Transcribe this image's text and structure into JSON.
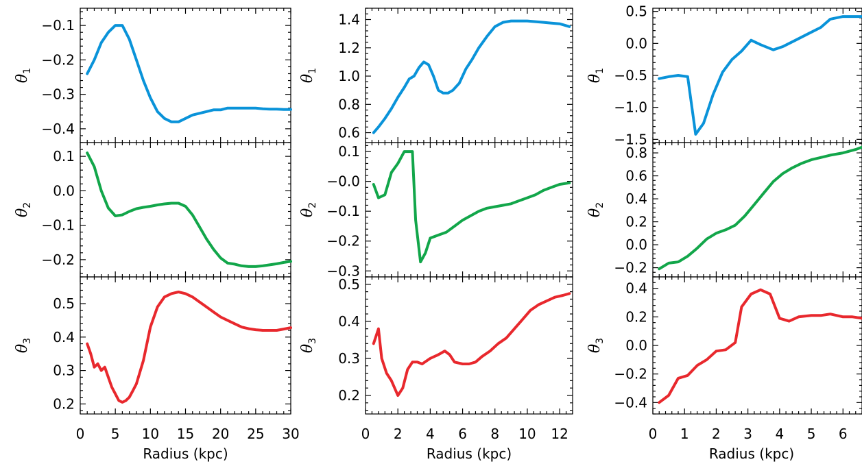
{
  "colors": {
    "theta1": "#0a93d9",
    "theta2": "#12a64a",
    "theta3": "#e8282d",
    "axis": "#000000"
  },
  "chart_data": [
    {
      "type": "line",
      "columns": 3,
      "rows": 3,
      "xlabel": "Radius (kpc)",
      "xlim": [
        0,
        30
      ],
      "xticks": [
        0,
        5,
        10,
        15,
        20,
        25,
        30
      ],
      "panels": [
        {
          "ylabel": "θ",
          "ylabel_sub": "1",
          "series": "theta1",
          "ylim": [
            -0.44,
            -0.05
          ],
          "yticks": [
            -0.1,
            -0.2,
            -0.3,
            -0.4
          ],
          "ytick_labels": [
            "−0.1",
            "−0.2",
            "−0.3",
            "−0.4"
          ],
          "x": [
            1,
            2,
            3,
            4,
            5,
            6,
            7,
            8,
            9,
            10,
            11,
            12,
            13,
            14,
            15,
            16,
            17,
            18,
            19,
            20,
            21,
            22,
            23,
            24,
            25,
            26,
            27,
            28,
            29,
            30
          ],
          "y": [
            -0.24,
            -0.2,
            -0.15,
            -0.12,
            -0.1,
            -0.1,
            -0.14,
            -0.2,
            -0.26,
            -0.31,
            -0.35,
            -0.37,
            -0.38,
            -0.38,
            -0.37,
            -0.36,
            -0.355,
            -0.35,
            -0.345,
            -0.345,
            -0.34,
            -0.34,
            -0.34,
            -0.34,
            -0.34,
            -0.342,
            -0.343,
            -0.343,
            -0.344,
            -0.344
          ]
        },
        {
          "ylabel": "θ",
          "ylabel_sub": "2",
          "series": "theta2",
          "ylim": [
            -0.25,
            0.14
          ],
          "yticks": [
            0.1,
            0.0,
            -0.1,
            -0.2
          ],
          "ytick_labels": [
            "0.1",
            "0.0",
            "−0.1",
            "−0.2"
          ],
          "x": [
            1,
            2,
            3,
            4,
            5,
            6,
            7,
            8,
            9,
            10,
            11,
            12,
            13,
            14,
            15,
            16,
            17,
            18,
            19,
            20,
            21,
            22,
            23,
            24,
            25,
            26,
            27,
            28,
            29,
            30
          ],
          "y": [
            0.11,
            0.07,
            0.0,
            -0.05,
            -0.073,
            -0.07,
            -0.06,
            -0.052,
            -0.048,
            -0.045,
            -0.041,
            -0.038,
            -0.036,
            -0.036,
            -0.045,
            -0.07,
            -0.105,
            -0.14,
            -0.17,
            -0.195,
            -0.21,
            -0.213,
            -0.218,
            -0.22,
            -0.22,
            -0.218,
            -0.215,
            -0.212,
            -0.208,
            -0.205
          ]
        },
        {
          "ylabel": "θ",
          "ylabel_sub": "3",
          "series": "theta3",
          "ylim": [
            0.17,
            0.58
          ],
          "yticks": [
            0.5,
            0.4,
            0.3,
            0.2
          ],
          "ytick_labels": [
            "0.5",
            "0.4",
            "0.3",
            "0.2"
          ],
          "x": [
            1,
            1.5,
            2,
            2.5,
            3,
            3.5,
            4,
            4.5,
            5,
            5.5,
            6,
            6.5,
            7,
            7.5,
            8,
            9,
            10,
            11,
            12,
            13,
            14,
            15,
            16,
            17,
            18,
            19,
            20,
            21,
            22,
            23,
            24,
            25,
            26,
            27,
            28,
            29,
            30
          ],
          "y": [
            0.38,
            0.35,
            0.31,
            0.32,
            0.3,
            0.31,
            0.28,
            0.25,
            0.23,
            0.21,
            0.205,
            0.21,
            0.22,
            0.24,
            0.26,
            0.33,
            0.43,
            0.49,
            0.52,
            0.53,
            0.535,
            0.53,
            0.52,
            0.505,
            0.49,
            0.475,
            0.46,
            0.45,
            0.44,
            0.43,
            0.425,
            0.422,
            0.42,
            0.42,
            0.42,
            0.424,
            0.428
          ]
        }
      ]
    },
    {
      "type": "line",
      "columns": 3,
      "rows": 3,
      "xlabel": "Radius (kpc)",
      "xlim": [
        0,
        12.8
      ],
      "xticks": [
        0,
        2,
        4,
        6,
        8,
        10,
        12
      ],
      "panels": [
        {
          "ylabel": "θ",
          "ylabel_sub": "1",
          "series": "theta1",
          "ylim": [
            0.53,
            1.48
          ],
          "yticks": [
            1.4,
            1.2,
            1.0,
            0.8,
            0.6
          ],
          "ytick_labels": [
            "1.4",
            "1.2",
            "1.0",
            "0.8",
            "0.6"
          ],
          "x": [
            0.5,
            0.8,
            1.2,
            1.6,
            2,
            2.4,
            2.7,
            3.0,
            3.3,
            3.6,
            3.9,
            4.2,
            4.5,
            4.8,
            5.1,
            5.4,
            5.8,
            6.2,
            6.6,
            7.0,
            7.5,
            8.0,
            8.5,
            9.0,
            9.5,
            10.0,
            10.5,
            11.0,
            11.5,
            12.0,
            12.6
          ],
          "y": [
            0.6,
            0.64,
            0.7,
            0.77,
            0.85,
            0.92,
            0.98,
            1.0,
            1.06,
            1.1,
            1.08,
            1.0,
            0.9,
            0.88,
            0.88,
            0.9,
            0.95,
            1.05,
            1.12,
            1.2,
            1.28,
            1.35,
            1.38,
            1.39,
            1.39,
            1.39,
            1.385,
            1.38,
            1.375,
            1.37,
            1.35
          ]
        },
        {
          "ylabel": "θ",
          "ylabel_sub": "2",
          "series": "theta2",
          "ylim": [
            -0.32,
            0.13
          ],
          "yticks": [
            0.1,
            0.0,
            -0.1,
            -0.2,
            -0.3
          ],
          "ytick_labels": [
            "0.1",
            "−0.0",
            "−0.1",
            "−0.2",
            "−0.3"
          ],
          "x": [
            0.5,
            0.8,
            1.2,
            1.6,
            2.0,
            2.4,
            2.9,
            3.1,
            3.4,
            3.7,
            4.0,
            4.5,
            5.0,
            5.5,
            6.0,
            6.5,
            7.0,
            7.5,
            8.0,
            8.5,
            9.0,
            9.5,
            10.0,
            10.5,
            11.0,
            11.5,
            12.0,
            12.6
          ],
          "y": [
            -0.01,
            -0.055,
            -0.045,
            0.03,
            0.06,
            0.1,
            0.1,
            -0.13,
            -0.27,
            -0.24,
            -0.19,
            -0.18,
            -0.17,
            -0.15,
            -0.13,
            -0.115,
            -0.1,
            -0.09,
            -0.085,
            -0.08,
            -0.075,
            -0.065,
            -0.055,
            -0.045,
            -0.03,
            -0.02,
            -0.01,
            -0.005
          ]
        },
        {
          "ylabel": "θ",
          "ylabel_sub": "3",
          "series": "theta3",
          "ylim": [
            0.15,
            0.52
          ],
          "yticks": [
            0.5,
            0.4,
            0.3,
            0.2
          ],
          "ytick_labels": [
            "0.5",
            "0.4",
            "0.3",
            "0.2"
          ],
          "x": [
            0.5,
            0.8,
            1.0,
            1.3,
            1.6,
            2.0,
            2.3,
            2.6,
            2.9,
            3.2,
            3.5,
            4.0,
            4.5,
            4.9,
            5.2,
            5.5,
            6.0,
            6.4,
            6.8,
            7.2,
            7.7,
            8.2,
            8.7,
            9.2,
            9.7,
            10.2,
            10.7,
            11.2,
            11.7,
            12.2,
            12.6
          ],
          "y": [
            0.34,
            0.38,
            0.3,
            0.26,
            0.24,
            0.2,
            0.22,
            0.27,
            0.29,
            0.29,
            0.285,
            0.3,
            0.31,
            0.32,
            0.31,
            0.29,
            0.285,
            0.285,
            0.29,
            0.305,
            0.32,
            0.34,
            0.355,
            0.38,
            0.405,
            0.43,
            0.445,
            0.455,
            0.465,
            0.47,
            0.475
          ]
        }
      ]
    },
    {
      "type": "line",
      "columns": 3,
      "rows": 3,
      "xlabel": "Radius (kpc)",
      "xlim": [
        0,
        6.6
      ],
      "xticks": [
        0,
        1,
        2,
        3,
        4,
        5,
        6
      ],
      "panels": [
        {
          "ylabel": "θ",
          "ylabel_sub": "1",
          "series": "theta1",
          "ylim": [
            -1.55,
            0.55
          ],
          "yticks": [
            0.5,
            0.0,
            -0.5,
            -1.0,
            -1.5
          ],
          "ytick_labels": [
            "0.5",
            "0.0",
            "−0.5",
            "−1.0",
            "−1.5"
          ],
          "x": [
            0.2,
            0.5,
            0.8,
            1.1,
            1.35,
            1.6,
            1.9,
            2.2,
            2.5,
            2.8,
            3.1,
            3.4,
            3.8,
            4.1,
            4.5,
            4.9,
            5.3,
            5.6,
            6.0,
            6.4,
            6.6
          ],
          "y": [
            -0.55,
            -0.52,
            -0.5,
            -0.52,
            -1.42,
            -1.25,
            -0.8,
            -0.45,
            -0.25,
            -0.12,
            0.05,
            -0.02,
            -0.1,
            -0.05,
            0.05,
            0.15,
            0.25,
            0.38,
            0.42,
            0.42,
            0.42
          ]
        },
        {
          "ylabel": "θ",
          "ylabel_sub": "2",
          "series": "theta2",
          "ylim": [
            -0.28,
            0.89
          ],
          "yticks": [
            0.8,
            0.6,
            0.4,
            0.2,
            0.0,
            -0.2
          ],
          "ytick_labels": [
            "0.8",
            "0.6",
            "0.4",
            "0.2",
            "0.0",
            "−0.2"
          ],
          "x": [
            0.2,
            0.5,
            0.8,
            1.1,
            1.4,
            1.7,
            2.0,
            2.3,
            2.6,
            2.9,
            3.2,
            3.5,
            3.8,
            4.1,
            4.4,
            4.7,
            5.0,
            5.3,
            5.6,
            6.0,
            6.4,
            6.6
          ],
          "y": [
            -0.21,
            -0.16,
            -0.15,
            -0.1,
            -0.03,
            0.05,
            0.1,
            0.13,
            0.17,
            0.25,
            0.35,
            0.45,
            0.55,
            0.62,
            0.67,
            0.71,
            0.74,
            0.76,
            0.78,
            0.8,
            0.83,
            0.85
          ]
        },
        {
          "ylabel": "θ",
          "ylabel_sub": "3",
          "series": "theta3",
          "ylim": [
            -0.48,
            0.48
          ],
          "yticks": [
            0.4,
            0.2,
            0.0,
            -0.2,
            -0.4
          ],
          "ytick_labels": [
            "0.4",
            "0.2",
            "0.0",
            "−0.2",
            "−0.4"
          ],
          "x": [
            0.2,
            0.5,
            0.8,
            1.1,
            1.4,
            1.7,
            2.0,
            2.3,
            2.6,
            2.8,
            3.1,
            3.4,
            3.7,
            4.0,
            4.3,
            4.6,
            5.0,
            5.3,
            5.6,
            6.0,
            6.3,
            6.6
          ],
          "y": [
            -0.4,
            -0.35,
            -0.23,
            -0.21,
            -0.14,
            -0.1,
            -0.04,
            -0.03,
            0.02,
            0.27,
            0.36,
            0.39,
            0.36,
            0.19,
            0.17,
            0.2,
            0.21,
            0.21,
            0.22,
            0.2,
            0.2,
            0.19
          ]
        }
      ]
    }
  ]
}
